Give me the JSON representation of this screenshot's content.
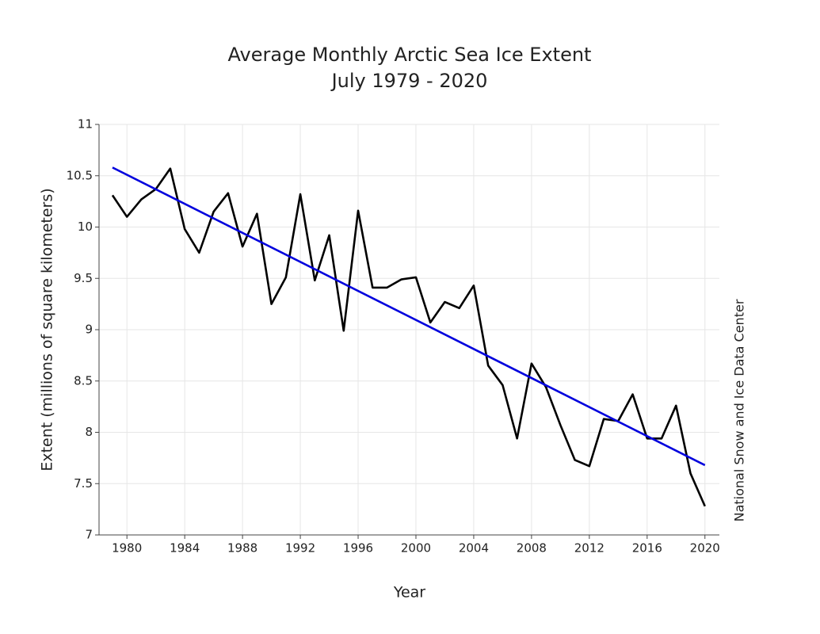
{
  "chart_data": {
    "type": "line",
    "title": "Average Monthly Arctic Sea Ice Extent",
    "subtitle": "July 1979 - 2020",
    "x_label": "Year",
    "y_label": "Extent (millions of square kilometers)",
    "source": "National Snow and Ice Data Center",
    "x": [
      1979,
      1980,
      1981,
      1982,
      1983,
      1984,
      1985,
      1986,
      1987,
      1988,
      1989,
      1990,
      1991,
      1992,
      1993,
      1994,
      1995,
      1996,
      1997,
      1998,
      1999,
      2000,
      2001,
      2002,
      2003,
      2004,
      2005,
      2006,
      2007,
      2008,
      2009,
      2010,
      2011,
      2012,
      2013,
      2014,
      2015,
      2016,
      2017,
      2018,
      2019,
      2020
    ],
    "series": [
      {
        "color": "#000000",
        "values": [
          10.31,
          10.1,
          10.27,
          10.37,
          10.57,
          9.98,
          9.75,
          10.15,
          10.33,
          9.81,
          10.13,
          9.25,
          9.51,
          10.32,
          9.48,
          9.92,
          8.99,
          10.16,
          9.41,
          9.41,
          9.49,
          9.51,
          9.07,
          9.27,
          9.21,
          9.43,
          8.65,
          8.46,
          7.94,
          8.67,
          8.44,
          8.07,
          7.73,
          7.67,
          8.13,
          8.11,
          8.37,
          7.94,
          7.94,
          8.26,
          7.6,
          7.28
        ]
      },
      {
        "color": "#0000dd",
        "x": [
          1979,
          2020
        ],
        "values": [
          10.58,
          7.68
        ]
      }
    ],
    "xlim": [
      1978.07,
      2021
    ],
    "xticks": [
      1980,
      1984,
      1988,
      1992,
      1996,
      2000,
      2004,
      2008,
      2012,
      2016,
      2020
    ],
    "ylim": [
      7,
      11
    ],
    "yticks": [
      7,
      7.5,
      8,
      8.5,
      9,
      9.5,
      10,
      10.5,
      11
    ],
    "grid": true
  }
}
